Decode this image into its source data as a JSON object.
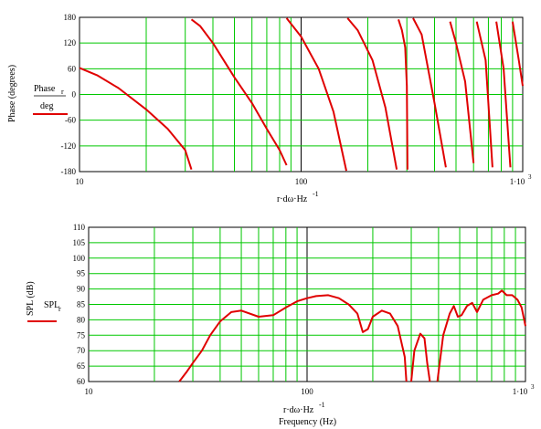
{
  "chart_data": [
    {
      "type": "line",
      "xscale": "log",
      "xlim": [
        10,
        1000
      ],
      "ylim": [
        -180,
        180
      ],
      "y_ticks": [
        "-180",
        "-120",
        "-60",
        "0",
        "60",
        "120",
        "180"
      ],
      "x_ticks": [
        "10",
        "100",
        "1·10"
      ],
      "x_tick_exponent": "3",
      "ylabel_text": "Phase (degrees)",
      "legend_main": "Phase",
      "legend_sub": "r",
      "legend_den": "deg",
      "xlabel_main": "r·dω·Hz",
      "xlabel_exp": "-1",
      "grid": true,
      "series_color": "#e00000",
      "segments": [
        [
          [
            10,
            62
          ],
          [
            12,
            45
          ],
          [
            15,
            15
          ],
          [
            20,
            -35
          ],
          [
            25,
            -80
          ],
          [
            30,
            -130
          ],
          [
            32,
            -175
          ]
        ],
        [
          [
            32,
            175
          ],
          [
            35,
            160
          ],
          [
            40,
            120
          ],
          [
            50,
            40
          ],
          [
            60,
            -20
          ],
          [
            70,
            -80
          ],
          [
            80,
            -130
          ],
          [
            86,
            -165
          ]
        ],
        [
          [
            86,
            178
          ],
          [
            90,
            165
          ],
          [
            100,
            135
          ],
          [
            120,
            60
          ],
          [
            140,
            -40
          ],
          [
            160,
            -178
          ]
        ],
        [
          [
            162,
            178
          ],
          [
            180,
            150
          ],
          [
            210,
            80
          ],
          [
            240,
            -30
          ],
          [
            270,
            -175
          ]
        ],
        [
          [
            275,
            175
          ],
          [
            285,
            150
          ],
          [
            295,
            110
          ],
          [
            300,
            20
          ],
          [
            302,
            -175
          ]
        ],
        [
          [
            320,
            178
          ],
          [
            350,
            140
          ],
          [
            400,
            -20
          ],
          [
            450,
            -170
          ]
        ],
        [
          [
            470,
            170
          ],
          [
            500,
            120
          ],
          [
            550,
            30
          ],
          [
            600,
            -160
          ]
        ],
        [
          [
            620,
            170
          ],
          [
            680,
            80
          ],
          [
            730,
            -170
          ]
        ],
        [
          [
            760,
            170
          ],
          [
            820,
            60
          ],
          [
            880,
            -170
          ]
        ],
        [
          [
            900,
            170
          ],
          [
            960,
            80
          ],
          [
            1000,
            20
          ]
        ]
      ]
    },
    {
      "type": "line",
      "xscale": "log",
      "xlim": [
        10,
        1000
      ],
      "ylim": [
        60,
        110
      ],
      "y_ticks": [
        "60",
        "65",
        "70",
        "75",
        "80",
        "85",
        "90",
        "95",
        "100",
        "105",
        "110"
      ],
      "x_ticks": [
        "10",
        "100",
        "1·10"
      ],
      "x_tick_exponent": "3",
      "ylabel_text": "SPL (dB)",
      "legend_main": "SPL",
      "legend_sub": "r",
      "xlabel_main": "r·dω·Hz",
      "xlabel_exp": "-1",
      "xlabel2": "Frequency (Hz)",
      "grid": true,
      "series_color": "#e00000",
      "segments": [
        [
          [
            26,
            60
          ],
          [
            28,
            63
          ],
          [
            30,
            66
          ],
          [
            33,
            70
          ],
          [
            36,
            75
          ],
          [
            40,
            79.5
          ],
          [
            45,
            82.5
          ],
          [
            50,
            83
          ],
          [
            60,
            81
          ],
          [
            70,
            81.5
          ],
          [
            80,
            84
          ],
          [
            90,
            86
          ],
          [
            100,
            87
          ],
          [
            110,
            87.7
          ],
          [
            125,
            88
          ],
          [
            140,
            87
          ],
          [
            155,
            85
          ],
          [
            170,
            82
          ],
          [
            180,
            76
          ],
          [
            190,
            77
          ],
          [
            200,
            81
          ],
          [
            220,
            83
          ],
          [
            240,
            82
          ],
          [
            260,
            78
          ],
          [
            280,
            68
          ],
          [
            285,
            60
          ]
        ],
        [
          [
            300,
            60
          ],
          [
            310,
            70
          ],
          [
            330,
            75.5
          ],
          [
            345,
            74
          ],
          [
            355,
            66
          ],
          [
            365,
            60
          ]
        ],
        [
          [
            395,
            60
          ],
          [
            420,
            75
          ],
          [
            450,
            82
          ],
          [
            470,
            84.5
          ],
          [
            490,
            81
          ],
          [
            510,
            81.5
          ],
          [
            540,
            84.5
          ],
          [
            570,
            85.5
          ],
          [
            600,
            82.5
          ],
          [
            640,
            86.5
          ],
          [
            700,
            88
          ],
          [
            750,
            88.5
          ],
          [
            780,
            89.5
          ],
          [
            820,
            88
          ],
          [
            870,
            88
          ],
          [
            920,
            86.5
          ],
          [
            960,
            84
          ],
          [
            1000,
            78
          ]
        ]
      ]
    }
  ]
}
